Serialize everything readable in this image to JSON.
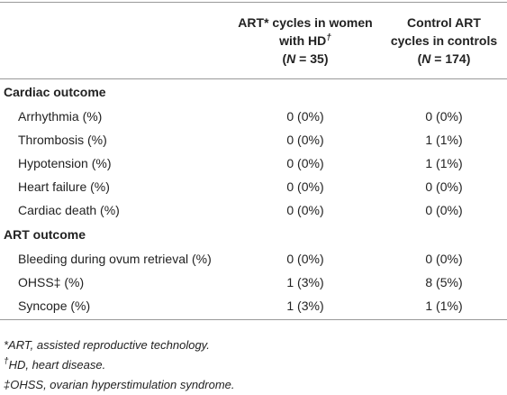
{
  "table": {
    "columns": [
      {
        "title": "ART* cycles in women with HD",
        "mark": "†",
        "n_prefix": "(",
        "n_symbol": "N",
        "n_suffix": " = 35)"
      },
      {
        "title": "Control ART cycles in controls",
        "n_prefix": "(",
        "n_symbol": "N",
        "n_suffix": " = 174)"
      }
    ],
    "sections": [
      {
        "label": "Cardiac outcome",
        "rows": [
          [
            "Arrhythmia (%)",
            "0 (0%)",
            "0 (0%)"
          ],
          [
            "Thrombosis (%)",
            "0 (0%)",
            "1 (1%)"
          ],
          [
            "Hypotension (%)",
            "0 (0%)",
            "1 (1%)"
          ],
          [
            "Heart failure (%)",
            "0 (0%)",
            "0 (0%)"
          ],
          [
            "Cardiac death (%)",
            "0 (0%)",
            "0 (0%)"
          ]
        ]
      },
      {
        "label": "ART outcome",
        "rows": [
          [
            "Bleeding during ovum retrieval (%)",
            "0 (0%)",
            "0 (0%)"
          ],
          [
            "OHSS‡ (%)",
            "1 (3%)",
            "8 (5%)"
          ],
          [
            "Syncope (%)",
            "1 (3%)",
            "1 (1%)"
          ]
        ]
      }
    ],
    "footnotes": [
      {
        "text": "*ART, assisted reproductive technology."
      },
      {
        "mark": "†",
        "text": "HD, heart disease."
      },
      {
        "text": "‡OHSS, ovarian hyperstimulation syndrome."
      }
    ]
  }
}
